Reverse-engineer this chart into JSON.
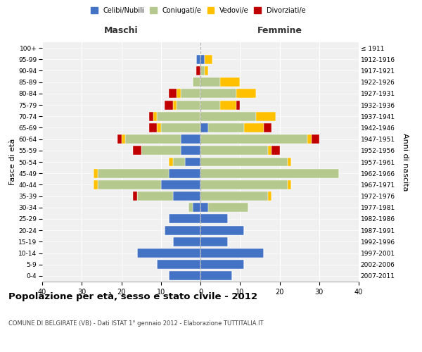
{
  "age_groups": [
    "0-4",
    "5-9",
    "10-14",
    "15-19",
    "20-24",
    "25-29",
    "30-34",
    "35-39",
    "40-44",
    "45-49",
    "50-54",
    "55-59",
    "60-64",
    "65-69",
    "70-74",
    "75-79",
    "80-84",
    "85-89",
    "90-94",
    "95-99",
    "100+"
  ],
  "birth_years": [
    "2007-2011",
    "2002-2006",
    "1997-2001",
    "1992-1996",
    "1987-1991",
    "1982-1986",
    "1977-1981",
    "1972-1976",
    "1967-1971",
    "1962-1966",
    "1957-1961",
    "1952-1956",
    "1947-1951",
    "1942-1946",
    "1937-1941",
    "1932-1936",
    "1927-1931",
    "1922-1926",
    "1917-1921",
    "1912-1916",
    "≤ 1911"
  ],
  "male": {
    "celibi": [
      8,
      11,
      16,
      7,
      9,
      8,
      2,
      7,
      10,
      8,
      4,
      5,
      5,
      0,
      0,
      0,
      0,
      0,
      0,
      1,
      0
    ],
    "coniugati": [
      0,
      0,
      0,
      0,
      0,
      0,
      1,
      9,
      16,
      18,
      3,
      10,
      14,
      10,
      11,
      6,
      5,
      2,
      0,
      0,
      0
    ],
    "vedovi": [
      0,
      0,
      0,
      0,
      0,
      0,
      0,
      0,
      1,
      1,
      1,
      0,
      1,
      1,
      1,
      1,
      1,
      0,
      0,
      0,
      0
    ],
    "divorziati": [
      0,
      0,
      0,
      0,
      0,
      0,
      0,
      1,
      0,
      0,
      0,
      2,
      1,
      2,
      1,
      2,
      2,
      0,
      1,
      0,
      0
    ]
  },
  "female": {
    "nubili": [
      8,
      11,
      16,
      7,
      11,
      7,
      2,
      0,
      0,
      0,
      0,
      0,
      0,
      2,
      0,
      0,
      0,
      0,
      0,
      1,
      0
    ],
    "coniugate": [
      0,
      0,
      0,
      0,
      0,
      0,
      10,
      17,
      22,
      35,
      22,
      17,
      27,
      9,
      14,
      5,
      9,
      5,
      1,
      0,
      0
    ],
    "vedove": [
      0,
      0,
      0,
      0,
      0,
      0,
      0,
      1,
      1,
      0,
      1,
      1,
      1,
      5,
      5,
      4,
      5,
      5,
      1,
      2,
      0
    ],
    "divorziate": [
      0,
      0,
      0,
      0,
      0,
      0,
      0,
      0,
      0,
      0,
      0,
      2,
      2,
      2,
      0,
      1,
      0,
      0,
      0,
      0,
      0
    ]
  },
  "colors": {
    "celibi": "#4472c4",
    "coniugati": "#b5c98e",
    "vedovi": "#ffc000",
    "divorziati": "#c00000"
  },
  "xlim": [
    -40,
    40
  ],
  "title": "Popolazione per età, sesso e stato civile - 2012",
  "subtitle": "COMUNE DI BELGIRATE (VB) - Dati ISTAT 1° gennaio 2012 - Elaborazione TUTTITALIA.IT",
  "ylabel_left": "Fasce di età",
  "ylabel_right": "Anni di nascita",
  "xlabel_left": "Maschi",
  "xlabel_right": "Femmine",
  "bg_color": "#f0f0f0",
  "grid_color": "#cccccc"
}
